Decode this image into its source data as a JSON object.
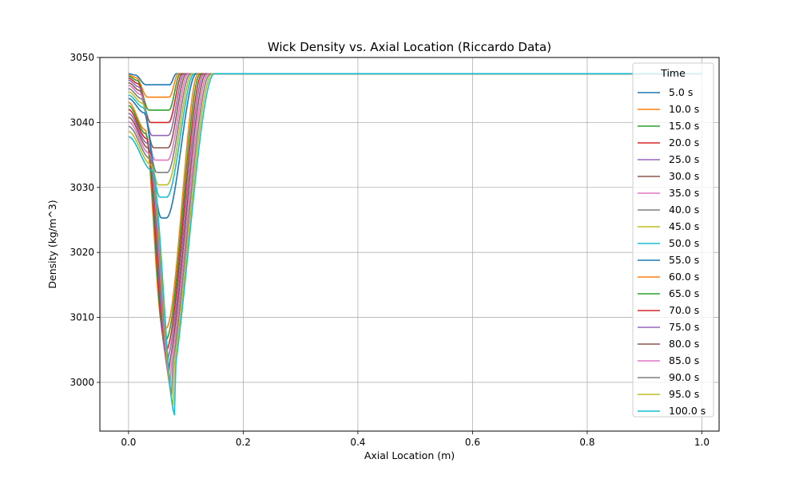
{
  "chart_data": {
    "type": "line",
    "title": "Wick Density vs. Axial Location (Riccardo Data)",
    "xlabel": "Axial Location (m)",
    "ylabel": "Density (kg/m^3)",
    "xlim": [
      -0.05,
      1.03
    ],
    "ylim": [
      2992.5,
      3050
    ],
    "xticks": [
      0.0,
      0.2,
      0.4,
      0.6,
      0.8,
      1.0
    ],
    "xtick_labels": [
      "0.0",
      "0.2",
      "0.4",
      "0.6",
      "0.8",
      "1.0"
    ],
    "yticks": [
      3000,
      3010,
      3020,
      3030,
      3040,
      3050
    ],
    "ytick_labels": [
      "3000",
      "3010",
      "3020",
      "3030",
      "3040",
      "3050"
    ],
    "grid": true,
    "legend_title": "Time",
    "legend_position": "top-right",
    "baseline_density": 3047.5,
    "series": [
      {
        "name": "5.0 s",
        "color": "#1f77b4",
        "start": 3047.5,
        "min": 3045.8
      },
      {
        "name": "10.0 s",
        "color": "#ff7f0e",
        "start": 3047.3,
        "min": 3043.9
      },
      {
        "name": "15.0 s",
        "color": "#2ca02c",
        "start": 3047.1,
        "min": 3041.9
      },
      {
        "name": "20.0 s",
        "color": "#d62728",
        "start": 3046.8,
        "min": 3040.0
      },
      {
        "name": "25.0 s",
        "color": "#9467bd",
        "start": 3046.5,
        "min": 3038.0
      },
      {
        "name": "30.0 s",
        "color": "#8c564b",
        "start": 3046.1,
        "min": 3036.1
      },
      {
        "name": "35.0 s",
        "color": "#e377c2",
        "start": 3045.7,
        "min": 3034.2
      },
      {
        "name": "40.0 s",
        "color": "#7f7f7f",
        "start": 3045.2,
        "min": 3032.3
      },
      {
        "name": "45.0 s",
        "color": "#bcbd22",
        "start": 3044.7,
        "min": 3030.4
      },
      {
        "name": "50.0 s",
        "color": "#17becf",
        "start": 3044.2,
        "min": 3028.5
      },
      {
        "name": "55.0 s",
        "color": "#1f77b4",
        "start": 3043.7,
        "min": 3025.3
      },
      {
        "name": "60.0 s",
        "color": "#ff7f0e",
        "start": 3043.1,
        "min": 3008.3
      },
      {
        "name": "65.0 s",
        "color": "#2ca02c",
        "start": 3042.6,
        "min": 3006.5
      },
      {
        "name": "70.0 s",
        "color": "#d62728",
        "start": 3042.0,
        "min": 3004.7
      },
      {
        "name": "75.0 s",
        "color": "#9467bd",
        "start": 3041.4,
        "min": 3003.0
      },
      {
        "name": "80.0 s",
        "color": "#8c564b",
        "start": 3040.8,
        "min": 3001.3
      },
      {
        "name": "85.0 s",
        "color": "#e377c2",
        "start": 3040.1,
        "min": 2999.7
      },
      {
        "name": "90.0 s",
        "color": "#7f7f7f",
        "start": 3039.4,
        "min": 2998.1
      },
      {
        "name": "95.0 s",
        "color": "#bcbd22",
        "start": 3038.6,
        "min": 2996.5
      },
      {
        "name": "100.0 s",
        "color": "#17becf",
        "start": 3037.8,
        "min": 2994.9
      }
    ]
  }
}
